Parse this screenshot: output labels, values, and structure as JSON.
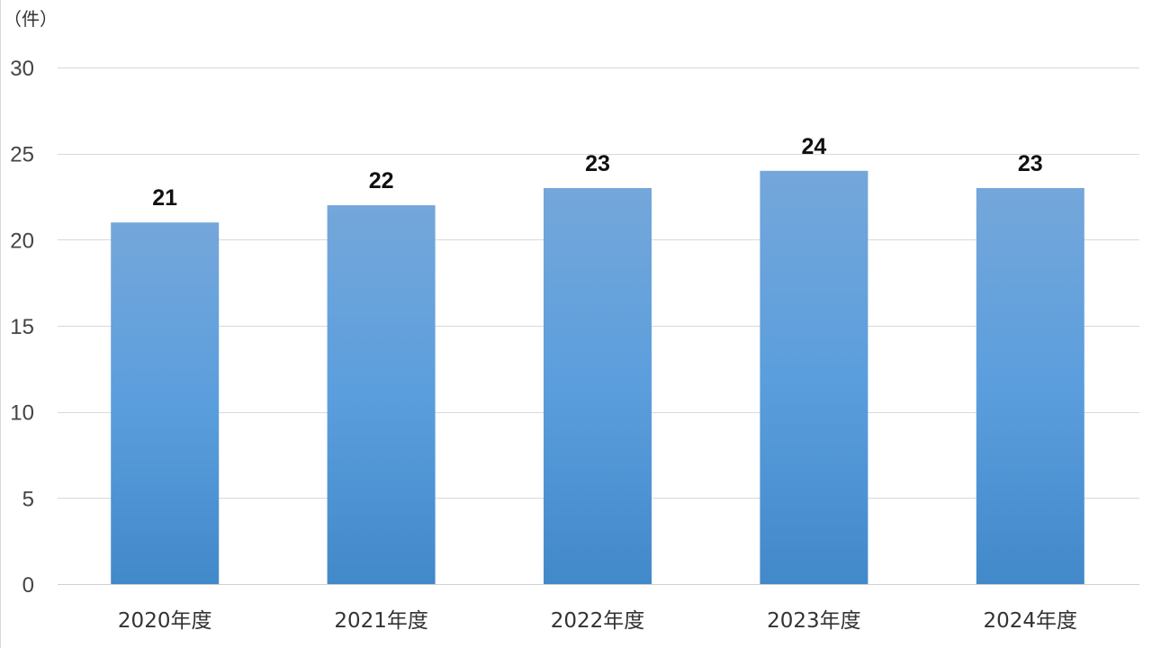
{
  "chart_data": {
    "type": "bar",
    "title": "",
    "xlabel": "",
    "ylabel": "（件）",
    "categories": [
      "2020年度",
      "2021年度",
      "2022年度",
      "2023年度",
      "2024年度"
    ],
    "series": [
      {
        "values": [
          21,
          22,
          23,
          24,
          23
        ]
      }
    ],
    "ylim": [
      0,
      30
    ],
    "yticks": [
      0,
      5,
      10,
      15,
      20,
      25,
      30
    ],
    "grid": true,
    "legend": "none",
    "data_labels": true,
    "colors": {
      "bar_top": "#74A7DA",
      "bar_bottom": "#4289CA"
    }
  }
}
